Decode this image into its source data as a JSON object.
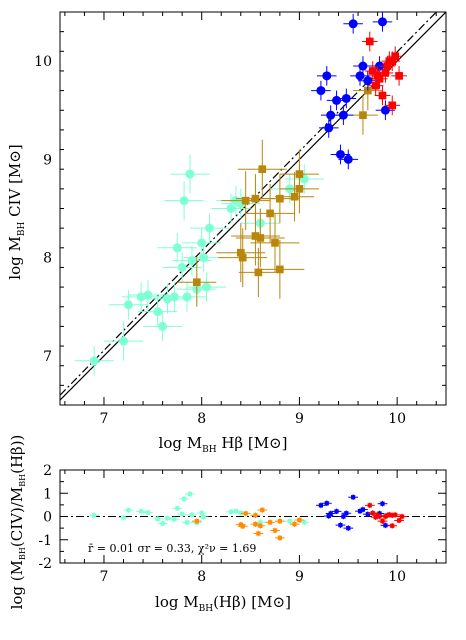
{
  "chart_data": [
    {
      "type": "scatter",
      "xlabel": "log M_BH Hβ [M⊙]",
      "ylabel": "log M_BH CIV [M⊙]",
      "xlim": [
        6.55,
        10.5
      ],
      "ylim": [
        6.5,
        10.5
      ],
      "xticks": [
        "7",
        "8",
        "9",
        "10"
      ],
      "yticks": [
        "7",
        "8",
        "9",
        "10"
      ],
      "lines": [
        {
          "style": "solid",
          "from": [
            6.55,
            6.55
          ],
          "to": [
            10.5,
            10.5
          ],
          "color": "#000000"
        },
        {
          "style": "dashdot",
          "from": [
            6.55,
            6.6
          ],
          "to": [
            10.5,
            10.6
          ],
          "color": "#000000"
        }
      ],
      "series": [
        {
          "marker": "circle",
          "color": "#7fffd4",
          "points": [
            {
              "x": 6.9,
              "y": 6.95,
              "ex": 0.2,
              "ey": 0.15
            },
            {
              "x": 7.2,
              "y": 7.15,
              "ex": 0.2,
              "ey": 0.2
            },
            {
              "x": 7.25,
              "y": 7.52,
              "ex": 0.2,
              "ey": 0.15
            },
            {
              "x": 7.38,
              "y": 7.6,
              "ex": 0.2,
              "ey": 0.15
            },
            {
              "x": 7.45,
              "y": 7.62,
              "ex": 0.2,
              "ey": 0.15
            },
            {
              "x": 7.55,
              "y": 7.45,
              "ex": 0.2,
              "ey": 0.15
            },
            {
              "x": 7.6,
              "y": 7.3,
              "ex": 0.2,
              "ey": 0.15
            },
            {
              "x": 7.65,
              "y": 7.58,
              "ex": 0.2,
              "ey": 0.15
            },
            {
              "x": 7.72,
              "y": 7.6,
              "ex": 0.2,
              "ey": 0.15
            },
            {
              "x": 7.75,
              "y": 8.1,
              "ex": 0.2,
              "ey": 0.15
            },
            {
              "x": 7.8,
              "y": 7.9,
              "ex": 0.2,
              "ey": 0.15
            },
            {
              "x": 7.82,
              "y": 8.58,
              "ex": 0.2,
              "ey": 0.2
            },
            {
              "x": 7.85,
              "y": 7.6,
              "ex": 0.2,
              "ey": 0.15
            },
            {
              "x": 7.88,
              "y": 8.85,
              "ex": 0.2,
              "ey": 0.2
            },
            {
              "x": 7.9,
              "y": 7.97,
              "ex": 0.2,
              "ey": 0.15
            },
            {
              "x": 7.95,
              "y": 7.68,
              "ex": 0.2,
              "ey": 0.15
            },
            {
              "x": 8.0,
              "y": 8.15,
              "ex": 0.2,
              "ey": 0.15
            },
            {
              "x": 8.02,
              "y": 8.0,
              "ex": 0.2,
              "ey": 0.15
            },
            {
              "x": 8.05,
              "y": 7.7,
              "ex": 0.2,
              "ey": 0.15
            },
            {
              "x": 8.08,
              "y": 8.3,
              "ex": 0.2,
              "ey": 0.15
            },
            {
              "x": 8.3,
              "y": 8.5,
              "ex": 0.2,
              "ey": 0.15
            },
            {
              "x": 8.35,
              "y": 8.58,
              "ex": 0.2,
              "ey": 0.15
            },
            {
              "x": 8.4,
              "y": 8.55,
              "ex": 0.2,
              "ey": 0.15
            },
            {
              "x": 8.6,
              "y": 8.35,
              "ex": 0.2,
              "ey": 0.15
            },
            {
              "x": 8.9,
              "y": 8.7,
              "ex": 0.2,
              "ey": 0.15
            },
            {
              "x": 9.05,
              "y": 8.8,
              "ex": 0.2,
              "ey": 0.15
            }
          ]
        },
        {
          "marker": "square",
          "color": "#b8860b",
          "points": [
            {
              "x": 7.95,
              "y": 7.75,
              "ex": 0.2,
              "ey": 0.25
            },
            {
              "x": 8.4,
              "y": 8.05,
              "ex": 0.25,
              "ey": 0.3
            },
            {
              "x": 8.42,
              "y": 8.0,
              "ex": 0.25,
              "ey": 0.3
            },
            {
              "x": 8.45,
              "y": 8.58,
              "ex": 0.25,
              "ey": 0.3
            },
            {
              "x": 8.55,
              "y": 8.6,
              "ex": 0.2,
              "ey": 0.25
            },
            {
              "x": 8.55,
              "y": 8.22,
              "ex": 0.25,
              "ey": 0.3
            },
            {
              "x": 8.6,
              "y": 8.2,
              "ex": 0.25,
              "ey": 0.3
            },
            {
              "x": 8.58,
              "y": 7.85,
              "ex": 0.2,
              "ey": 0.25
            },
            {
              "x": 8.62,
              "y": 8.9,
              "ex": 0.25,
              "ey": 0.3
            },
            {
              "x": 8.7,
              "y": 8.45,
              "ex": 0.25,
              "ey": 0.3
            },
            {
              "x": 8.75,
              "y": 8.15,
              "ex": 0.25,
              "ey": 0.3
            },
            {
              "x": 8.8,
              "y": 7.88,
              "ex": 0.25,
              "ey": 0.3
            },
            {
              "x": 8.8,
              "y": 8.6,
              "ex": 0.2,
              "ey": 0.25
            },
            {
              "x": 8.95,
              "y": 8.62,
              "ex": 0.2,
              "ey": 0.25
            },
            {
              "x": 9.0,
              "y": 8.85,
              "ex": 0.2,
              "ey": 0.25
            },
            {
              "x": 9.0,
              "y": 8.7,
              "ex": 0.2,
              "ey": 0.25
            },
            {
              "x": 9.65,
              "y": 9.45,
              "ex": 0.15,
              "ey": 0.2
            },
            {
              "x": 9.7,
              "y": 9.7,
              "ex": 0.15,
              "ey": 0.2
            }
          ]
        },
        {
          "marker": "circle",
          "color": "#0000ff",
          "points": [
            {
              "x": 9.22,
              "y": 9.7,
              "ex": 0.1,
              "ey": 0.1
            },
            {
              "x": 9.28,
              "y": 9.85,
              "ex": 0.1,
              "ey": 0.1
            },
            {
              "x": 9.3,
              "y": 9.32,
              "ex": 0.1,
              "ey": 0.1
            },
            {
              "x": 9.32,
              "y": 9.45,
              "ex": 0.1,
              "ey": 0.1
            },
            {
              "x": 9.38,
              "y": 9.6,
              "ex": 0.1,
              "ey": 0.1
            },
            {
              "x": 9.42,
              "y": 9.05,
              "ex": 0.1,
              "ey": 0.1
            },
            {
              "x": 9.45,
              "y": 9.45,
              "ex": 0.1,
              "ey": 0.1
            },
            {
              "x": 9.48,
              "y": 9.62,
              "ex": 0.1,
              "ey": 0.1
            },
            {
              "x": 9.5,
              "y": 9.0,
              "ex": 0.1,
              "ey": 0.1
            },
            {
              "x": 9.55,
              "y": 10.38,
              "ex": 0.1,
              "ey": 0.1
            },
            {
              "x": 9.62,
              "y": 9.85,
              "ex": 0.1,
              "ey": 0.1
            },
            {
              "x": 9.65,
              "y": 9.95,
              "ex": 0.1,
              "ey": 0.1
            },
            {
              "x": 9.7,
              "y": 9.8,
              "ex": 0.1,
              "ey": 0.1
            },
            {
              "x": 9.82,
              "y": 9.95,
              "ex": 0.1,
              "ey": 0.1
            },
            {
              "x": 9.85,
              "y": 10.4,
              "ex": 0.1,
              "ey": 0.1
            },
            {
              "x": 9.88,
              "y": 9.5,
              "ex": 0.1,
              "ey": 0.1
            }
          ]
        },
        {
          "marker": "square",
          "color": "#ff0000",
          "points": [
            {
              "x": 9.72,
              "y": 10.2,
              "ex": 0.08,
              "ey": 0.1
            },
            {
              "x": 9.75,
              "y": 9.9,
              "ex": 0.08,
              "ey": 0.1
            },
            {
              "x": 9.78,
              "y": 9.75,
              "ex": 0.08,
              "ey": 0.1
            },
            {
              "x": 9.8,
              "y": 9.85,
              "ex": 0.08,
              "ey": 0.1
            },
            {
              "x": 9.82,
              "y": 9.82,
              "ex": 0.08,
              "ey": 0.1
            },
            {
              "x": 9.85,
              "y": 9.65,
              "ex": 0.08,
              "ey": 0.1
            },
            {
              "x": 9.88,
              "y": 9.88,
              "ex": 0.08,
              "ey": 0.1
            },
            {
              "x": 9.9,
              "y": 9.95,
              "ex": 0.08,
              "ey": 0.1
            },
            {
              "x": 9.92,
              "y": 10.0,
              "ex": 0.08,
              "ey": 0.1
            },
            {
              "x": 9.95,
              "y": 10.0,
              "ex": 0.08,
              "ey": 0.1
            },
            {
              "x": 9.95,
              "y": 9.55,
              "ex": 0.08,
              "ey": 0.1
            },
            {
              "x": 9.98,
              "y": 10.05,
              "ex": 0.08,
              "ey": 0.1
            },
            {
              "x": 10.02,
              "y": 9.85,
              "ex": 0.08,
              "ey": 0.1
            }
          ]
        }
      ]
    },
    {
      "type": "scatter",
      "xlabel": "log M_BH(Hβ) [M⊙]",
      "ylabel": "log (M_BH(CIV)/M_BH(Hβ))",
      "xlim": [
        6.55,
        10.5
      ],
      "ylim": [
        -2,
        2
      ],
      "xticks": [
        "7",
        "8",
        "9",
        "10"
      ],
      "yticks": [
        "-2",
        "-1",
        "0",
        "1",
        "2"
      ],
      "annotation": "r̄ = 0.01 σr = 0.33, χ²ν = 1.69",
      "reference_line": {
        "y": 0,
        "style": "dashdot"
      },
      "series": [
        {
          "marker": "square",
          "color": "#7fffd4",
          "points": [
            {
              "x": 6.9,
              "y": 0.05
            },
            {
              "x": 7.2,
              "y": -0.05
            },
            {
              "x": 7.25,
              "y": 0.27
            },
            {
              "x": 7.38,
              "y": 0.22
            },
            {
              "x": 7.45,
              "y": 0.17
            },
            {
              "x": 7.55,
              "y": -0.1
            },
            {
              "x": 7.6,
              "y": -0.3
            },
            {
              "x": 7.65,
              "y": -0.07
            },
            {
              "x": 7.72,
              "y": -0.12
            },
            {
              "x": 7.75,
              "y": 0.35
            },
            {
              "x": 7.8,
              "y": 0.1
            },
            {
              "x": 7.82,
              "y": 0.76
            },
            {
              "x": 7.85,
              "y": -0.25
            },
            {
              "x": 7.88,
              "y": 0.97
            },
            {
              "x": 7.9,
              "y": 0.07
            },
            {
              "x": 7.95,
              "y": -0.27
            },
            {
              "x": 8.0,
              "y": 0.15
            },
            {
              "x": 8.02,
              "y": -0.02
            },
            {
              "x": 8.3,
              "y": 0.2
            },
            {
              "x": 8.35,
              "y": 0.23
            },
            {
              "x": 8.4,
              "y": 0.15
            },
            {
              "x": 8.6,
              "y": -0.25
            },
            {
              "x": 8.9,
              "y": -0.2
            },
            {
              "x": 9.05,
              "y": -0.25
            }
          ]
        },
        {
          "marker": "square",
          "color": "#ff8c00",
          "points": [
            {
              "x": 7.95,
              "y": -0.2
            },
            {
              "x": 8.4,
              "y": -0.35
            },
            {
              "x": 8.42,
              "y": -0.42
            },
            {
              "x": 8.45,
              "y": 0.13
            },
            {
              "x": 8.55,
              "y": 0.05
            },
            {
              "x": 8.55,
              "y": -0.33
            },
            {
              "x": 8.6,
              "y": -0.4
            },
            {
              "x": 8.58,
              "y": -0.73
            },
            {
              "x": 8.62,
              "y": 0.28
            },
            {
              "x": 8.7,
              "y": -0.25
            },
            {
              "x": 8.75,
              "y": -0.6
            },
            {
              "x": 8.8,
              "y": -0.92
            },
            {
              "x": 8.8,
              "y": -0.2
            },
            {
              "x": 8.95,
              "y": -0.33
            },
            {
              "x": 9.0,
              "y": -0.15
            }
          ]
        },
        {
          "marker": "square",
          "color": "#0000ff",
          "points": [
            {
              "x": 9.22,
              "y": 0.48
            },
            {
              "x": 9.28,
              "y": 0.57
            },
            {
              "x": 9.3,
              "y": 0.02
            },
            {
              "x": 9.32,
              "y": 0.13
            },
            {
              "x": 9.38,
              "y": 0.22
            },
            {
              "x": 9.42,
              "y": -0.37
            },
            {
              "x": 9.45,
              "y": 0.0
            },
            {
              "x": 9.48,
              "y": 0.14
            },
            {
              "x": 9.5,
              "y": -0.5
            },
            {
              "x": 9.55,
              "y": 0.83
            },
            {
              "x": 9.62,
              "y": 0.23
            },
            {
              "x": 9.65,
              "y": 0.3
            },
            {
              "x": 9.7,
              "y": 0.1
            },
            {
              "x": 9.82,
              "y": 0.13
            },
            {
              "x": 9.85,
              "y": 0.55
            },
            {
              "x": 9.88,
              "y": -0.38
            }
          ]
        },
        {
          "marker": "square",
          "color": "#ff0000",
          "points": [
            {
              "x": 9.72,
              "y": 0.48
            },
            {
              "x": 9.75,
              "y": 0.15
            },
            {
              "x": 9.78,
              "y": -0.03
            },
            {
              "x": 9.8,
              "y": 0.05
            },
            {
              "x": 9.82,
              "y": 0.0
            },
            {
              "x": 9.85,
              "y": -0.2
            },
            {
              "x": 9.88,
              "y": 0.0
            },
            {
              "x": 9.9,
              "y": 0.05
            },
            {
              "x": 9.92,
              "y": 0.08
            },
            {
              "x": 9.95,
              "y": 0.05
            },
            {
              "x": 9.95,
              "y": -0.4
            },
            {
              "x": 9.98,
              "y": 0.07
            },
            {
              "x": 10.02,
              "y": -0.17
            },
            {
              "x": 10.05,
              "y": 0.0
            }
          ]
        }
      ]
    }
  ]
}
